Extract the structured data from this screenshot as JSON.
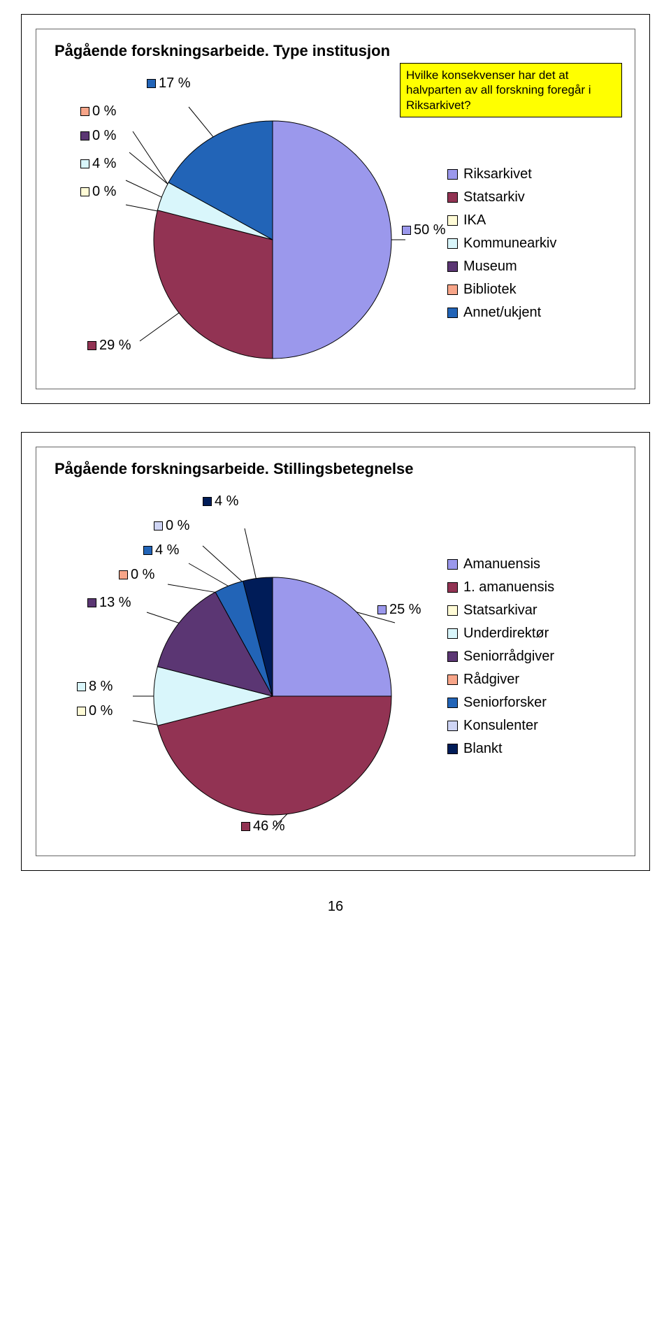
{
  "page_number": "16",
  "chart1": {
    "type": "pie",
    "title": "Pågående forskningsarbeide. Type institusjon",
    "title_fontsize": 22,
    "background_color": "#ffffff",
    "callout_text": "Hvilke konsekvenser har det at halvparten av all forskning foregår i Riksarkivet?",
    "callout_bg": "#ffff00",
    "slices": [
      {
        "label": "Riksarkivet",
        "pct": 50,
        "color": "#9b98ec",
        "label_text": "50 %"
      },
      {
        "label": "Statsarkiv",
        "pct": 29,
        "color": "#923353",
        "label_text": "29 %"
      },
      {
        "label": "IKA",
        "pct": 0,
        "color": "#fffbd6",
        "label_text": "0 %"
      },
      {
        "label": "Kommunearkiv",
        "pct": 4,
        "color": "#d9f6fb",
        "label_text": "4 %"
      },
      {
        "label": "Museum",
        "pct": 0,
        "color": "#5b3673",
        "label_text": "0 %"
      },
      {
        "label": "Bibliotek",
        "pct": 0,
        "color": "#f7a589",
        "label_text": "0 %"
      },
      {
        "label": "Annet/ukjent",
        "pct": 17,
        "color": "#2264b7",
        "label_text": "17 %"
      }
    ]
  },
  "chart2": {
    "type": "pie",
    "title": "Pågående forskningsarbeide. Stillingsbetegnelse",
    "title_fontsize": 22,
    "background_color": "#ffffff",
    "slices": [
      {
        "label": "Amanuensis",
        "pct": 25,
        "color": "#9b98ec",
        "label_text": "25 %"
      },
      {
        "label": "1. amanuensis",
        "pct": 46,
        "color": "#923353",
        "label_text": "46 %"
      },
      {
        "label": "Statsarkivar",
        "pct": 0,
        "color": "#fffbd6",
        "label_text": "0 %"
      },
      {
        "label": "Underdirektør",
        "pct": 8,
        "color": "#d9f6fb",
        "label_text": "8 %"
      },
      {
        "label": "Seniorrådgiver",
        "pct": 13,
        "color": "#5b3673",
        "label_text": "13 %"
      },
      {
        "label": "Rådgiver",
        "pct": 0,
        "color": "#f7a589",
        "label_text": "0 %"
      },
      {
        "label": "Seniorforsker",
        "pct": 4,
        "color": "#2264b7",
        "label_text": "4 %"
      },
      {
        "label": "Konsulenter",
        "pct": 0,
        "color": "#cfd5f5",
        "label_text": "0 %"
      },
      {
        "label": "Blankt",
        "pct": 4,
        "color": "#001c58",
        "label_text": "4 %"
      }
    ]
  }
}
